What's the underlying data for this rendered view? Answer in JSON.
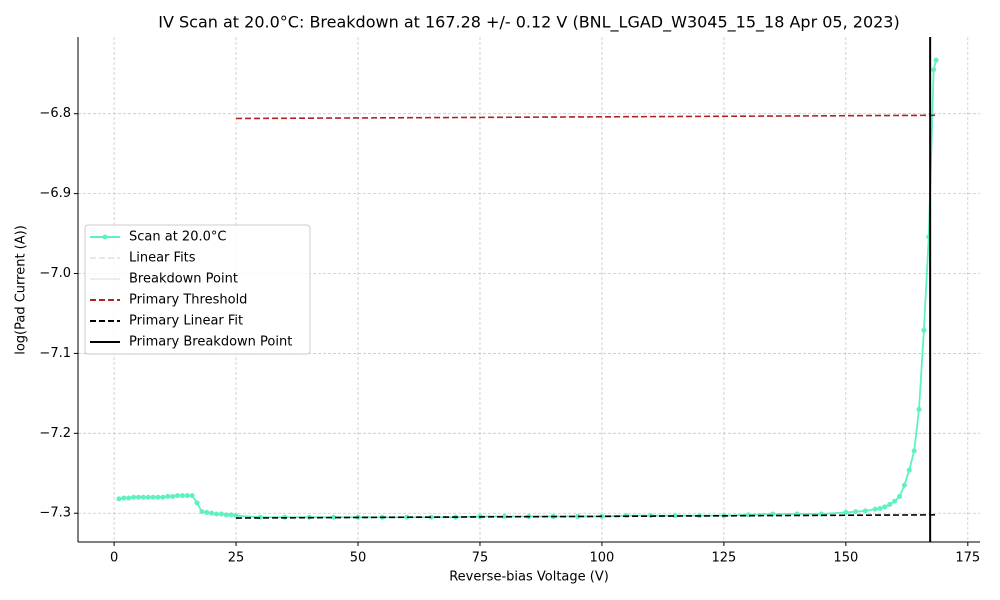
{
  "chart_data": {
    "type": "line",
    "title": "IV Scan at 20.0°C: Breakdown at 167.28 +/- 0.12 V (BNL_LGAD_W3045_15_18 Apr 05, 2023)",
    "x_label": "Reverse-bias Voltage (V)",
    "y_label": "log(Pad Current (A))",
    "xlim": [
      -7.4,
      177.5
    ],
    "ylim": [
      -7.336,
      -6.704
    ],
    "xticks": [
      0,
      25,
      50,
      75,
      100,
      125,
      150,
      175
    ],
    "yticks": [
      {
        "value": -6.8,
        "label": "−6.8"
      },
      {
        "value": -6.9,
        "label": "−6.9"
      },
      {
        "value": -7.0,
        "label": "−7.0"
      },
      {
        "value": -7.1,
        "label": "−7.1"
      },
      {
        "value": -7.2,
        "label": "−7.2"
      },
      {
        "value": -7.3,
        "label": "−7.3"
      }
    ],
    "grid": true,
    "legend": "center-left",
    "series": [
      {
        "name": "Scan at 20.0°C",
        "color": "#5ef2bd",
        "style": "line-marker",
        "x": [
          1,
          2,
          3,
          4,
          5,
          6,
          7,
          8,
          9,
          10,
          11,
          12,
          13,
          14,
          15,
          16,
          17,
          18,
          19,
          20,
          21,
          22,
          23,
          24,
          25,
          30,
          35,
          40,
          45,
          50,
          55,
          60,
          65,
          70,
          75,
          80,
          85,
          90,
          95,
          100,
          105,
          110,
          115,
          120,
          125,
          130,
          135,
          140,
          145,
          150,
          152,
          154,
          156,
          157,
          158,
          159,
          160,
          161,
          162,
          163,
          164,
          165,
          166,
          167,
          168,
          168.5
        ],
        "values": [
          -7.282,
          -7.281,
          -7.281,
          -7.28,
          -7.28,
          -7.28,
          -7.28,
          -7.28,
          -7.28,
          -7.28,
          -7.279,
          -7.279,
          -7.278,
          -7.278,
          -7.278,
          -7.278,
          -7.287,
          -7.298,
          -7.299,
          -7.3,
          -7.301,
          -7.301,
          -7.302,
          -7.302,
          -7.303,
          -7.305,
          -7.305,
          -7.305,
          -7.305,
          -7.305,
          -7.305,
          -7.305,
          -7.305,
          -7.305,
          -7.304,
          -7.304,
          -7.304,
          -7.304,
          -7.304,
          -7.304,
          -7.303,
          -7.303,
          -7.303,
          -7.303,
          -7.303,
          -7.302,
          -7.301,
          -7.301,
          -7.301,
          -7.299,
          -7.298,
          -7.297,
          -7.295,
          -7.294,
          -7.292,
          -7.289,
          -7.285,
          -7.279,
          -7.265,
          -7.246,
          -7.222,
          -7.17,
          -7.071,
          -6.954,
          -6.745,
          -6.733
        ]
      },
      {
        "name": "Linear Fits",
        "color": "#e6e6e6",
        "style": "dashed",
        "x": [],
        "values": []
      },
      {
        "name": "Breakdown Point",
        "color": "#ececec",
        "style": "line",
        "x": [],
        "values": []
      },
      {
        "name": "Primary Threshold",
        "color": "#b22222",
        "style": "dashed",
        "x": [
          25,
          168.5
        ],
        "values": [
          -6.806,
          -6.802
        ]
      },
      {
        "name": "Primary Linear Fit",
        "color": "#000000",
        "style": "dashed",
        "x": [
          25,
          168.5
        ],
        "values": [
          -7.306,
          -7.302
        ]
      },
      {
        "name": "Primary Breakdown Point",
        "color": "#000000",
        "style": "vline",
        "x": 167.28
      }
    ]
  }
}
